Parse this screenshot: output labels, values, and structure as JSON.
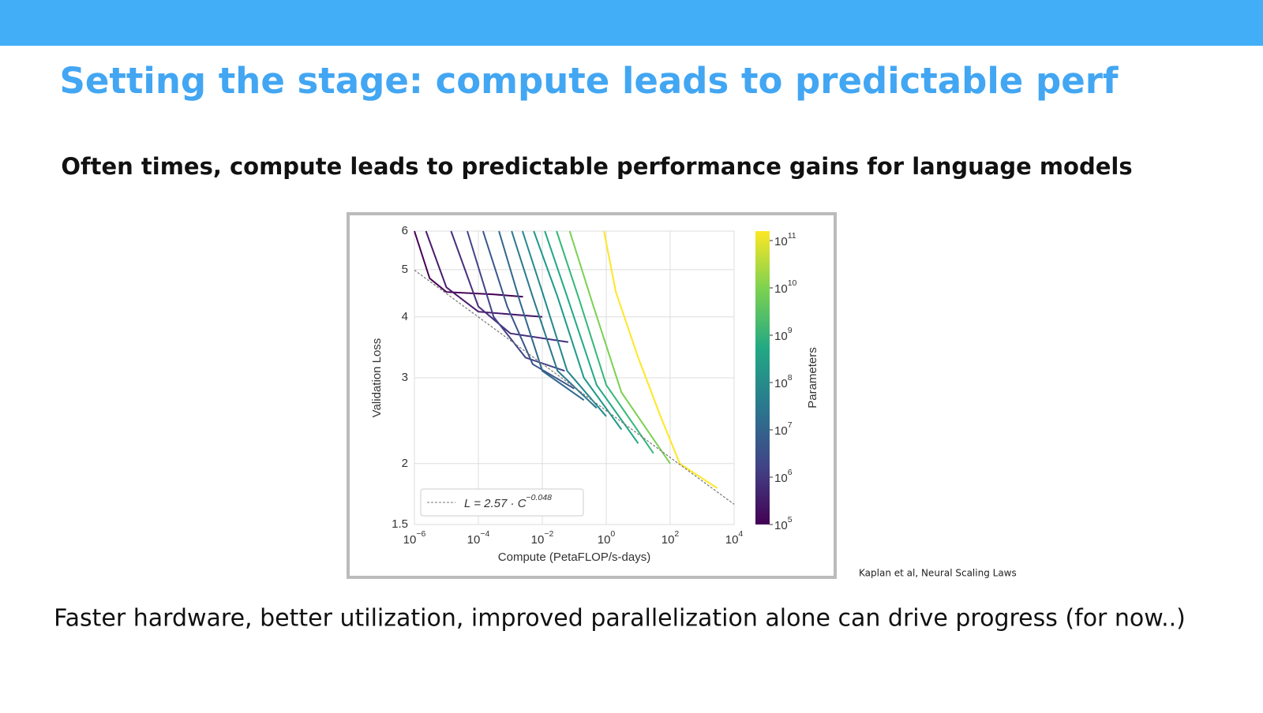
{
  "header": {
    "title": "Setting the stage: compute leads to predictable perf"
  },
  "subtitle": "Often times, compute leads to predictable performance gains  for language models",
  "citation": "Kaplan et al, Neural Scaling Laws",
  "footer": "Faster hardware, better utilization, improved parallelization alone can drive progress (for now..)",
  "chart_data": {
    "type": "line",
    "x_label": "Compute (PetaFLOP/s-days)",
    "y_label": "Validation Loss",
    "xscale": "log",
    "yscale": "log",
    "grid": true,
    "legend": "lower left",
    "xlim": [
      1e-06,
      10000
    ],
    "xticks": [
      {
        "value": 1e-06,
        "label": "10^−6"
      },
      {
        "value": 0.0001,
        "label": "10^−4"
      },
      {
        "value": 0.01,
        "label": "10^−2"
      },
      {
        "value": 1,
        "label": "10^0"
      },
      {
        "value": 100,
        "label": "10^2"
      },
      {
        "value": 10000,
        "label": "10^4"
      }
    ],
    "ylim": [
      1.5,
      6
    ],
    "yticks": [
      1.5,
      2,
      3,
      4,
      5,
      6
    ],
    "colorbar": {
      "label": "Parameters",
      "lim": [
        100000,
        100000000000
      ],
      "ticks": [
        {
          "value": 100000,
          "label": "10^5"
        },
        {
          "value": 1000000,
          "label": "10^6"
        },
        {
          "value": 10000000,
          "label": "10^7"
        },
        {
          "value": 100000000,
          "label": "10^8"
        },
        {
          "value": 1000000000,
          "label": "10^9"
        },
        {
          "value": 10000000000,
          "label": "10^10"
        },
        {
          "value": 100000000000,
          "label": "10^11"
        }
      ],
      "colormap": [
        "#440154",
        "#414487",
        "#2a788e",
        "#22a884",
        "#7ad151",
        "#fde725"
      ]
    },
    "series": [
      {
        "color": "#440154",
        "x": [
          1e-06,
          3e-06,
          1e-05,
          0.0003,
          0.0025
        ],
        "values": [
          6,
          4.8,
          4.5,
          4.45,
          4.4
        ]
      },
      {
        "color": "#481a6c",
        "x": [
          2.3e-06,
          1e-05,
          0.0001,
          0.01
        ],
        "values": [
          6,
          4.6,
          4.1,
          4.0
        ]
      },
      {
        "color": "#472f7d",
        "x": [
          1.4e-05,
          0.0001,
          0.001,
          0.065
        ],
        "values": [
          6,
          4.2,
          3.7,
          3.55
        ]
      },
      {
        "color": "#414487",
        "x": [
          4.5e-05,
          0.0003,
          0.003,
          0.05
        ],
        "values": [
          6,
          4.0,
          3.3,
          3.1
        ]
      },
      {
        "color": "#39568c",
        "x": [
          0.00014,
          0.0008,
          0.005,
          0.1
        ],
        "values": [
          6,
          4.2,
          3.2,
          2.85
        ]
      },
      {
        "color": "#31688e",
        "x": [
          0.00044,
          0.002,
          0.01,
          0.2
        ],
        "values": [
          6,
          4.3,
          3.1,
          2.7
        ]
      },
      {
        "color": "#2a788e",
        "x": [
          0.0011,
          0.005,
          0.03,
          0.5
        ],
        "values": [
          6,
          4.4,
          3.1,
          2.6
        ]
      },
      {
        "color": "#23888e",
        "x": [
          0.0024,
          0.01,
          0.06,
          1
        ],
        "values": [
          6,
          4.5,
          3.1,
          2.5
        ]
      },
      {
        "color": "#1f988b",
        "x": [
          0.0054,
          0.03,
          0.2,
          3
        ],
        "values": [
          6,
          4.4,
          3.0,
          2.35
        ]
      },
      {
        "color": "#22a884",
        "x": [
          0.012,
          0.06,
          0.5,
          10
        ],
        "values": [
          6,
          4.4,
          2.9,
          2.2
        ]
      },
      {
        "color": "#35b779",
        "x": [
          0.028,
          0.15,
          1,
          30
        ],
        "values": [
          6,
          4.3,
          2.9,
          2.1
        ]
      },
      {
        "color": "#7ad151",
        "x": [
          0.072,
          0.4,
          3,
          100
        ],
        "values": [
          6,
          4.2,
          2.8,
          2.0
        ]
      },
      {
        "color": "#fde725",
        "x": [
          0.85,
          2,
          10,
          50,
          200,
          3000
        ],
        "values": [
          6,
          4.5,
          3.3,
          2.5,
          2.0,
          1.78
        ]
      },
      {
        "name": "L = 2.57 · C^−0.048",
        "color": "#777777",
        "linestyle": "dashed",
        "x": [
          1e-06,
          10000
        ],
        "values": [
          4.99,
          1.65
        ]
      }
    ]
  }
}
